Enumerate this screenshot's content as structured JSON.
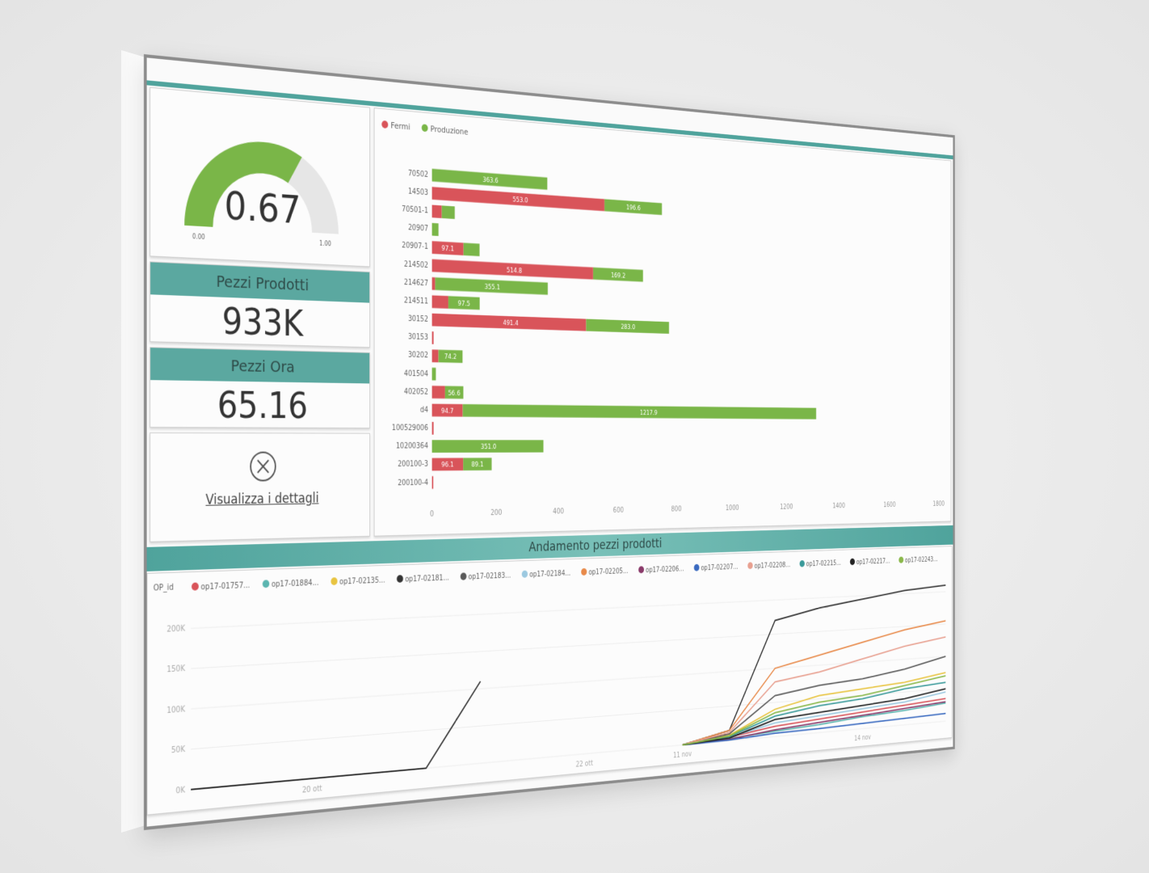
{
  "cards": [
    {
      "title": "Pezzi Prodotti",
      "value": "933K"
    },
    {
      "title": "Pezzi Ora",
      "value": "65.16"
    }
  ],
  "details_link": "Visualizza i dettagli",
  "chart_data": [
    {
      "type": "gauge",
      "value": 0.67,
      "color": "#7ab648",
      "ylim": [
        0,
        1
      ],
      "yticks": [
        {
          "value": 0,
          "label": "0.00"
        },
        {
          "value": 1,
          "label": "1.00"
        }
      ]
    },
    {
      "type": "bar",
      "orientation": "horizontal",
      "stacked": true,
      "categories": [
        "70502",
        "14503",
        "70501-1",
        "20907",
        "20907-1",
        "214502",
        "214627",
        "214511",
        "30152",
        "30153",
        "30202",
        "401504",
        "402052",
        "d4",
        "100529006",
        "10200364",
        "200100-3",
        "200100-4"
      ],
      "series": [
        {
          "name": "Fermi",
          "color": "#d9545a",
          "values": [
            0,
            553.0,
            30,
            0,
            97.1,
            514.8,
            10,
            50,
            491.4,
            5,
            20,
            0,
            40,
            94.7,
            5,
            0,
            96.1,
            4
          ],
          "value_labels": [
            null,
            "553.0",
            null,
            null,
            "97.1",
            "514.8",
            null,
            null,
            "491.4",
            null,
            null,
            null,
            null,
            "94.7",
            null,
            null,
            "96.1",
            null
          ]
        },
        {
          "name": "Produzione",
          "color": "#7ab648",
          "values": [
            363.6,
            196.6,
            40,
            20,
            50,
            169.2,
            355.1,
            97.5,
            283.0,
            0,
            74.2,
            12,
            56.6,
            1217.9,
            0,
            351.0,
            89.1,
            0
          ],
          "value_labels": [
            "363.6",
            "196.6",
            null,
            null,
            null,
            "169.2",
            "355.1",
            "97.5",
            "283.0",
            null,
            "74.2",
            null,
            "56.6",
            "1217.9",
            null,
            "351.0",
            "89.1",
            null
          ]
        }
      ],
      "xlim": [
        0,
        1800
      ],
      "xticks": [
        0,
        200,
        400,
        600,
        800,
        1000,
        1200,
        1400,
        1600,
        1800
      ],
      "legend": "top-left",
      "grid": false
    },
    {
      "type": "line",
      "title": "Andamento pezzi prodotti",
      "legend_title": "OP_id",
      "categories": [
        null,
        null,
        "20 ott",
        null,
        null,
        null,
        null,
        "22 ott",
        null,
        "11 nov",
        null,
        null,
        null,
        "14 nov",
        null,
        null
      ],
      "series": [
        {
          "name": "op17-01757...",
          "color": "#d9545a",
          "values": [
            null,
            null,
            null,
            null,
            null,
            null,
            null,
            null,
            null,
            0,
            5000,
            15000,
            20000,
            25000,
            30000,
            35000
          ]
        },
        {
          "name": "op17-01884...",
          "color": "#5bb5b0",
          "values": [
            null,
            null,
            null,
            null,
            null,
            null,
            null,
            null,
            null,
            0,
            3000,
            8000,
            12000,
            18000,
            22000,
            28000
          ]
        },
        {
          "name": "op17-02135...",
          "color": "#e8c440",
          "values": [
            null,
            null,
            null,
            null,
            null,
            null,
            null,
            null,
            null,
            0,
            8000,
            40000,
            55000,
            60000,
            65000,
            75000
          ]
        },
        {
          "name": "op17-02181...",
          "color": "#333333",
          "values": [
            0,
            0,
            0,
            0,
            0,
            110000,
            null,
            null,
            null,
            0,
            15000,
            170000,
            185000,
            195000,
            205000,
            210000
          ]
        },
        {
          "name": "op17-02183...",
          "color": "#5a5a5a",
          "values": [
            null,
            null,
            null,
            null,
            null,
            null,
            null,
            null,
            null,
            0,
            10000,
            60000,
            70000,
            75000,
            85000,
            100000
          ]
        },
        {
          "name": "op17-02184...",
          "color": "#9cc9e0",
          "values": [
            null,
            null,
            null,
            null,
            null,
            null,
            null,
            null,
            null,
            0,
            5000,
            20000,
            25000,
            30000,
            35000,
            45000
          ]
        },
        {
          "name": "op17-02205...",
          "color": "#e88a4a",
          "values": [
            null,
            null,
            null,
            null,
            null,
            null,
            null,
            null,
            null,
            0,
            15000,
            100000,
            115000,
            130000,
            145000,
            155000
          ]
        },
        {
          "name": "op17-02206...",
          "color": "#8a3a6a",
          "values": [
            null,
            null,
            null,
            null,
            null,
            null,
            null,
            null,
            null,
            0,
            2000,
            10000,
            15000,
            20000,
            25000,
            30000
          ]
        },
        {
          "name": "op17-02207...",
          "color": "#3a6ac0",
          "values": [
            null,
            null,
            null,
            null,
            null,
            null,
            null,
            null,
            null,
            0,
            1000,
            5000,
            6000,
            8000,
            10000,
            12000
          ]
        },
        {
          "name": "op17-02208...",
          "color": "#e8a090",
          "values": [
            null,
            null,
            null,
            null,
            null,
            null,
            null,
            null,
            null,
            0,
            12000,
            80000,
            90000,
            105000,
            120000,
            130000
          ]
        },
        {
          "name": "op17-02215...",
          "color": "#3a9a9a",
          "values": [
            null,
            null,
            null,
            null,
            null,
            null,
            null,
            null,
            null,
            0,
            6000,
            30000,
            40000,
            45000,
            55000,
            60000
          ]
        },
        {
          "name": "op17-02217...",
          "color": "#222222",
          "values": [
            null,
            null,
            null,
            null,
            null,
            null,
            null,
            null,
            null,
            0,
            4000,
            25000,
            30000,
            35000,
            40000,
            50000
          ]
        },
        {
          "name": "op17-02243...",
          "color": "#8ab84a",
          "values": [
            null,
            null,
            null,
            null,
            null,
            null,
            null,
            null,
            null,
            0,
            7000,
            35000,
            45000,
            50000,
            60000,
            70000
          ]
        }
      ],
      "ylim": [
        0,
        220000
      ],
      "yticks": [
        {
          "value": 0,
          "label": "0K"
        },
        {
          "value": 50000,
          "label": "50K"
        },
        {
          "value": 100000,
          "label": "100K"
        },
        {
          "value": 150000,
          "label": "150K"
        },
        {
          "value": 200000,
          "label": "200K"
        }
      ],
      "grid": true,
      "legend": "top"
    }
  ]
}
